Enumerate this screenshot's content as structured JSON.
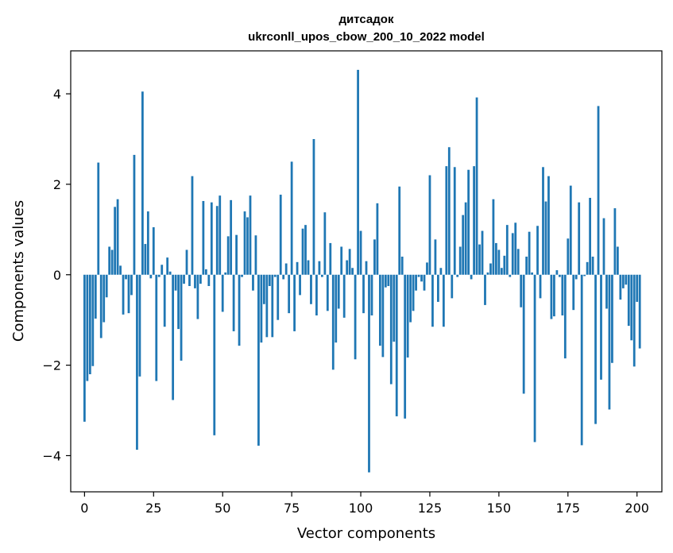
{
  "chart_data": {
    "type": "bar",
    "title": "дитсадок",
    "subtitle": "ukrconll_upos_cbow_200_10_2022 model",
    "xlabel": "Vector components",
    "ylabel": "Components values",
    "xlim": [
      -5,
      209
    ],
    "ylim": [
      -4.8,
      4.95
    ],
    "xticks": [
      0,
      25,
      50,
      75,
      100,
      125,
      150,
      175,
      200
    ],
    "yticks": [
      -4,
      -2,
      0,
      2,
      4
    ],
    "color": "#1f77b4",
    "grid": false,
    "values": [
      -3.25,
      -2.35,
      -2.2,
      -2.02,
      -0.97,
      2.48,
      -1.4,
      -1.05,
      -0.5,
      0.62,
      0.55,
      1.5,
      1.67,
      0.2,
      -0.88,
      -0.1,
      -0.85,
      -0.45,
      2.65,
      -3.87,
      -2.25,
      4.05,
      0.68,
      1.4,
      -0.08,
      1.05,
      -2.35,
      -0.05,
      0.22,
      -1.15,
      0.38,
      0.07,
      -2.77,
      -0.35,
      -1.2,
      -1.9,
      -0.2,
      0.55,
      -0.25,
      2.18,
      -0.3,
      -0.98,
      -0.2,
      1.63,
      0.12,
      -0.25,
      1.6,
      -3.55,
      1.52,
      1.75,
      -0.82,
      0.05,
      0.85,
      1.65,
      -1.25,
      0.88,
      -1.57,
      -0.05,
      1.4,
      1.27,
      1.75,
      -0.35,
      0.87,
      -3.78,
      -1.5,
      -0.65,
      -1.38,
      -0.25,
      -1.38,
      -0.05,
      -1.0,
      1.77,
      -0.1,
      0.25,
      -0.85,
      2.5,
      -1.25,
      0.28,
      -0.45,
      1.02,
      1.1,
      0.32,
      -0.65,
      3.0,
      -0.9,
      0.3,
      -0.05,
      1.38,
      -0.8,
      0.7,
      -2.1,
      -1.5,
      -0.75,
      0.62,
      -0.95,
      0.32,
      0.57,
      0.15,
      -1.87,
      4.53,
      0.97,
      -0.85,
      0.3,
      -4.37,
      -0.9,
      0.78,
      1.58,
      -1.57,
      -1.82,
      -0.28,
      -0.25,
      -2.42,
      -1.48,
      -3.13,
      1.95,
      0.4,
      -3.18,
      -1.83,
      -1.05,
      -0.8,
      -0.35,
      -0.05,
      -0.15,
      -0.35,
      0.27,
      2.2,
      -1.15,
      0.78,
      -0.6,
      0.15,
      -1.15,
      2.4,
      2.82,
      -0.52,
      2.38,
      -0.05,
      0.62,
      1.32,
      1.6,
      2.32,
      -0.1,
      2.4,
      3.92,
      0.67,
      0.97,
      -0.67,
      0.05,
      0.25,
      1.67,
      0.7,
      0.55,
      0.15,
      0.42,
      1.1,
      -0.05,
      0.92,
      1.15,
      0.57,
      -0.72,
      -2.63,
      0.4,
      0.95,
      0.05,
      -3.7,
      1.08,
      -0.52,
      2.38,
      1.62,
      2.18,
      -0.98,
      -0.92,
      0.1,
      -0.05,
      -0.9,
      -1.85,
      0.8,
      1.97,
      -0.78,
      -0.1,
      1.6,
      -3.77,
      -0.03,
      0.28,
      1.7,
      0.4,
      -3.3,
      3.73,
      -2.32,
      1.25,
      -0.75,
      -2.98,
      -1.95,
      1.47,
      0.62,
      -0.55,
      -0.3,
      -0.22,
      -1.13,
      -1.45,
      -2.03,
      -0.6,
      -1.63
    ]
  }
}
